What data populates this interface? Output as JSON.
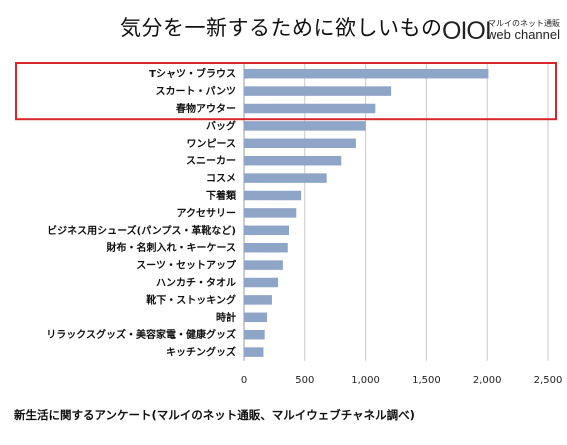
{
  "title": "気分を一新するために欲しいもの",
  "logo": {
    "mark": "OIOI",
    "sub": "マルイのネット通販",
    "text": "web channel"
  },
  "footer": "新生活に関するアンケート(マルイのネット通販、マルイウェブチャネル調べ)",
  "colors": {
    "bar": "#8ea5c8",
    "highlight": "#d9262b",
    "grid": "#c8c8c8"
  },
  "chart_data": {
    "type": "bar",
    "orientation": "horizontal",
    "categories": [
      "Tシャツ・ブラウス",
      "スカート・パンツ",
      "春物アウター",
      "バッグ",
      "ワンピース",
      "スニーカー",
      "コスメ",
      "下着類",
      "アクセサリー",
      "ビジネス用シューズ(パンプス・革靴など)",
      "財布・名刺入れ・キーケース",
      "スーツ・セットアップ",
      "ハンカチ・タオル",
      "靴下・ストッキング",
      "時計",
      "リラックスグッズ・美容家電・健康グッズ",
      "キッチングッズ"
    ],
    "values": [
      2010,
      1210,
      1080,
      1000,
      920,
      800,
      680,
      470,
      430,
      370,
      360,
      320,
      280,
      230,
      190,
      170,
      160
    ],
    "xlim": [
      0,
      2500
    ],
    "xticks": [
      "0",
      "500",
      "1,000",
      "1,500",
      "2,000",
      "2,500"
    ],
    "tick_values": [
      0,
      500,
      1000,
      1500,
      2000,
      2500
    ],
    "grid": true,
    "highlighted_categories": [
      "Tシャツ・ブラウス",
      "スカート・パンツ",
      "春物アウター"
    ]
  }
}
